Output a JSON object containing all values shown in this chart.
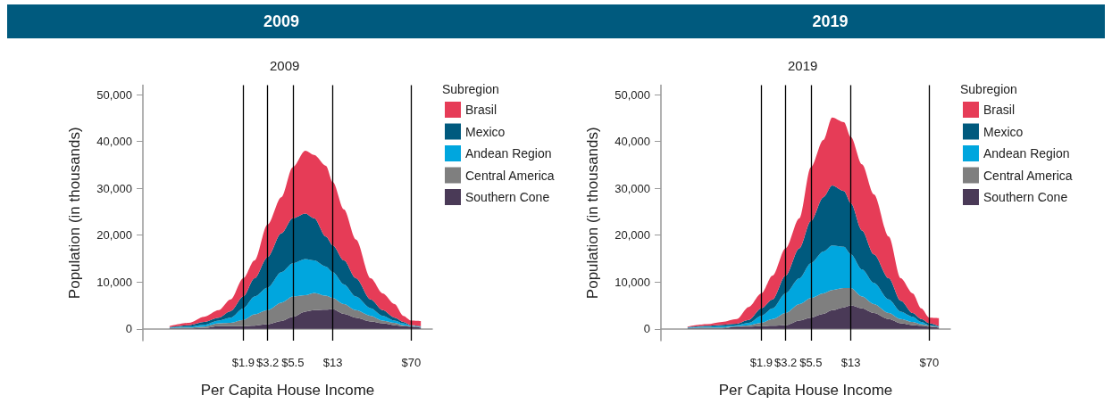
{
  "chart_data": [
    {
      "type": "area",
      "title": "2009",
      "subtitle": "2009",
      "xlabel": "Per Capita House Income",
      "ylabel": "Population (in thousands)",
      "legend_title": "Subregion",
      "legend": "right",
      "stacked": true,
      "grid": false,
      "log": "x",
      "x": [
        0.39,
        0.59,
        0.82,
        1.12,
        1.45,
        1.9,
        2.42,
        3.2,
        4.3,
        5.5,
        7.2,
        8.7,
        11.2,
        13,
        16.5,
        21.3,
        29.3,
        37.9,
        49,
        59,
        70,
        86
      ],
      "xlim": [
        0.22,
        110
      ],
      "xticks": [
        {
          "value": 1.9,
          "label": "$1.9"
        },
        {
          "value": 3.2,
          "label": "$3.2"
        },
        {
          "value": 5.5,
          "label": "$5.5"
        },
        {
          "value": 13,
          "label": "$13"
        },
        {
          "value": 70,
          "label": "$70"
        }
      ],
      "ylim": [
        -2500,
        52000
      ],
      "yticks": [
        0,
        {
          "value": 10000,
          "label": "10,000"
        },
        {
          "value": 20000,
          "label": "20,000"
        },
        {
          "value": 30000,
          "label": "30,000"
        },
        {
          "value": 40000,
          "label": "40,000"
        },
        {
          "value": 50000,
          "label": "50,000"
        }
      ],
      "ref_lines": [
        {
          "axis": "x",
          "value": 1.9,
          "color": "#000000"
        },
        {
          "axis": "x",
          "value": 3.2,
          "color": "#000000"
        },
        {
          "axis": "x",
          "value": 5.5,
          "color": "#000000"
        },
        {
          "axis": "x",
          "value": 13,
          "color": "#000000"
        },
        {
          "axis": "x",
          "value": 70,
          "color": "#000000"
        }
      ],
      "series": [
        {
          "name": "Southern Cone",
          "color": "#4a3a57",
          "values": [
            100,
            100,
            200,
            600,
            600,
            600,
            700,
            1000,
            1700,
            2600,
            3700,
            4000,
            4100,
            4200,
            3200,
            2400,
            1600,
            1200,
            800,
            600,
            500,
            300
          ]
        },
        {
          "name": "Central America",
          "color": "#7f7f7f",
          "values": [
            100,
            200,
            300,
            600,
            700,
            1300,
            2400,
            3000,
            3900,
            4300,
            3500,
            3700,
            3000,
            2400,
            2100,
            1600,
            1200,
            600,
            500,
            200,
            100,
            100
          ]
        },
        {
          "name": "Andean Region",
          "color": "#00a6de",
          "values": [
            100,
            200,
            400,
            600,
            1100,
            2500,
            3800,
            4800,
            6500,
            7100,
            7700,
            6900,
            6200,
            5500,
            4200,
            2900,
            1600,
            1000,
            500,
            400,
            100,
            100
          ]
        },
        {
          "name": "Mexico",
          "color": "#005a7e",
          "values": [
            100,
            300,
            600,
            600,
            1400,
            2500,
            3900,
            6500,
            8300,
            9600,
            9700,
            9000,
            6400,
            5700,
            5100,
            3900,
            1900,
            1200,
            600,
            300,
            100,
            100
          ]
        },
        {
          "name": "Brasil",
          "color": "#e63c57",
          "values": [
            200,
            500,
            1100,
            1600,
            2500,
            3900,
            3800,
            7000,
            7700,
            10900,
            13400,
            13500,
            15100,
            13500,
            10900,
            8300,
            4500,
            3600,
            2900,
            1300,
            1000,
            1100
          ]
        }
      ]
    },
    {
      "type": "area",
      "title": "2019",
      "subtitle": "2019",
      "xlabel": "Per Capita House Income",
      "ylabel": "Population (in thousands)",
      "legend_title": "Subregion",
      "legend": "right",
      "stacked": true,
      "grid": false,
      "log": "x",
      "x": [
        0.39,
        0.59,
        0.82,
        1.12,
        1.45,
        1.9,
        2.42,
        3.2,
        4.3,
        5.5,
        7.2,
        8.7,
        11.2,
        13,
        16.5,
        21.3,
        29.3,
        37.9,
        49,
        59,
        70,
        86
      ],
      "xlim": [
        0.22,
        110
      ],
      "xticks": [
        {
          "value": 1.9,
          "label": "$1.9"
        },
        {
          "value": 3.2,
          "label": "$3.2"
        },
        {
          "value": 5.5,
          "label": "$5.5"
        },
        {
          "value": 13,
          "label": "$13"
        },
        {
          "value": 70,
          "label": "$70"
        }
      ],
      "ylim": [
        -2500,
        52000
      ],
      "yticks": [
        0,
        {
          "value": 10000,
          "label": "10,000"
        },
        {
          "value": 20000,
          "label": "20,000"
        },
        {
          "value": 30000,
          "label": "30,000"
        },
        {
          "value": 40000,
          "label": "40,000"
        },
        {
          "value": 50000,
          "label": "50,000"
        }
      ],
      "ref_lines": [
        {
          "axis": "x",
          "value": 1.9,
          "color": "#000000"
        },
        {
          "axis": "x",
          "value": 3.2,
          "color": "#000000"
        },
        {
          "axis": "x",
          "value": 5.5,
          "color": "#000000"
        },
        {
          "axis": "x",
          "value": 13,
          "color": "#000000"
        },
        {
          "axis": "x",
          "value": 70,
          "color": "#000000"
        }
      ],
      "series": [
        {
          "name": "Southern Cone",
          "color": "#4a3a57",
          "values": [
            100,
            100,
            100,
            500,
            500,
            600,
            700,
            800,
            1800,
            2400,
            3200,
            4000,
            4600,
            5000,
            4400,
            3400,
            2100,
            1200,
            800,
            700,
            500,
            300
          ]
        },
        {
          "name": "Central America",
          "color": "#7f7f7f",
          "values": [
            100,
            200,
            200,
            100,
            300,
            700,
            1400,
            2600,
            3500,
            4200,
            4400,
            4300,
            4100,
            3700,
            2500,
            1900,
            1300,
            900,
            700,
            300,
            200,
            100
          ]
        },
        {
          "name": "Andean Region",
          "color": "#00a6de",
          "values": [
            100,
            200,
            300,
            200,
            500,
            1500,
            2300,
            4200,
            5500,
            7400,
            8900,
            9500,
            8800,
            7200,
            5800,
            4500,
            2900,
            1600,
            1100,
            500,
            100,
            100
          ]
        },
        {
          "name": "Mexico",
          "color": "#005a7e",
          "values": [
            100,
            200,
            300,
            300,
            600,
            1600,
            1900,
            3800,
            6400,
            9000,
            11600,
            12800,
            11900,
            10900,
            8300,
            6100,
            4500,
            2300,
            800,
            600,
            400,
            100
          ]
        },
        {
          "name": "Brasil",
          "color": "#e63c57",
          "values": [
            100,
            300,
            600,
            1000,
            2800,
            3200,
            5100,
            5800,
            6400,
            11500,
            12200,
            14500,
            14700,
            14100,
            14100,
            12800,
            8900,
            4800,
            4200,
            2300,
            1200,
            1700
          ]
        }
      ]
    }
  ]
}
